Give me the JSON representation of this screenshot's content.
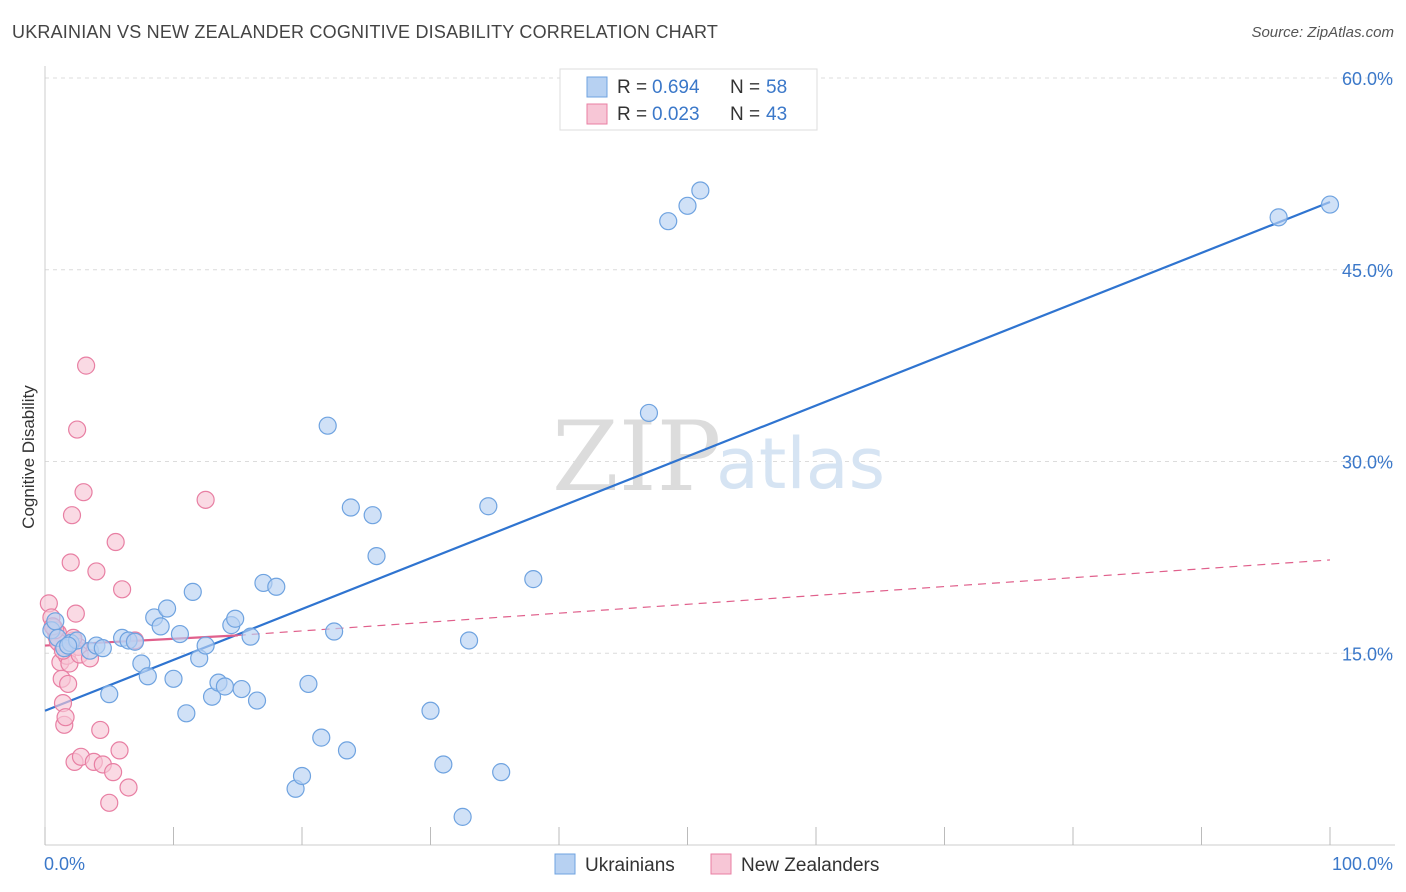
{
  "header": {
    "title": "UKRAINIAN VS NEW ZEALANDER COGNITIVE DISABILITY CORRELATION CHART",
    "source": "Source: ZipAtlas.com"
  },
  "legend": {
    "rows": [
      {
        "r_label": "R =",
        "r_value": "0.694",
        "n_label": "N =",
        "n_value": "58"
      },
      {
        "r_label": "R =",
        "r_value": "0.023",
        "n_label": "N =",
        "n_value": "43"
      }
    ]
  },
  "watermark": {
    "zip": "ZIP",
    "atlas": "atlas"
  },
  "colors": {
    "blue": "#6fa3e0",
    "blue_fill": "#b7d1f2",
    "blue_line": "#2f74d0",
    "pink": "#e87fa3",
    "pink_fill": "#f7c6d6",
    "pink_line": "#e0608c",
    "tick_text": "#3b78c9"
  },
  "chart_data": {
    "type": "scatter",
    "ylabel": "Cognitive Disability",
    "xlim": [
      0,
      100
    ],
    "ylim": [
      0,
      60
    ],
    "x_tick_labels": [
      "0.0%",
      "100.0%"
    ],
    "y_ticks": [
      15,
      30,
      45,
      60
    ],
    "y_tick_labels": [
      "15.0%",
      "30.0%",
      "45.0%",
      "60.0%"
    ],
    "grid": true,
    "legend_position": "bottom-center",
    "series": [
      {
        "name": "Ukrainians",
        "color": "#6fa3e0",
        "trend": {
          "x": [
            0,
            100
          ],
          "y": [
            10.5,
            50.3
          ]
        },
        "points": [
          [
            0.5,
            16.8
          ],
          [
            0.8,
            17.5
          ],
          [
            1.0,
            16.2
          ],
          [
            1.5,
            15.4
          ],
          [
            2.0,
            15.8
          ],
          [
            2.5,
            16.0
          ],
          [
            3.5,
            15.2
          ],
          [
            4.0,
            15.6
          ],
          [
            4.5,
            15.4
          ],
          [
            5.0,
            11.8
          ],
          [
            6.0,
            16.2
          ],
          [
            6.5,
            16.0
          ],
          [
            7.0,
            15.9
          ],
          [
            7.5,
            14.2
          ],
          [
            8.0,
            13.2
          ],
          [
            8.5,
            17.8
          ],
          [
            9.0,
            17.1
          ],
          [
            9.5,
            18.5
          ],
          [
            10.0,
            13.0
          ],
          [
            10.5,
            16.5
          ],
          [
            11.0,
            10.3
          ],
          [
            11.5,
            19.8
          ],
          [
            12.0,
            14.6
          ],
          [
            12.5,
            15.6
          ],
          [
            13.0,
            11.6
          ],
          [
            13.5,
            12.7
          ],
          [
            14.0,
            12.4
          ],
          [
            14.5,
            17.2
          ],
          [
            14.8,
            17.7
          ],
          [
            15.3,
            12.2
          ],
          [
            16.0,
            16.3
          ],
          [
            16.5,
            11.3
          ],
          [
            17.0,
            20.5
          ],
          [
            18.0,
            20.2
          ],
          [
            19.5,
            4.4
          ],
          [
            20.0,
            5.4
          ],
          [
            20.5,
            12.6
          ],
          [
            21.5,
            8.4
          ],
          [
            22.0,
            32.8
          ],
          [
            22.5,
            16.7
          ],
          [
            23.5,
            7.4
          ],
          [
            23.8,
            26.4
          ],
          [
            25.5,
            25.8
          ],
          [
            25.8,
            22.6
          ],
          [
            30.0,
            10.5
          ],
          [
            31.0,
            6.3
          ],
          [
            32.5,
            2.2
          ],
          [
            33.0,
            16.0
          ],
          [
            34.5,
            26.5
          ],
          [
            35.5,
            5.7
          ],
          [
            38.0,
            20.8
          ],
          [
            47.0,
            33.8
          ],
          [
            48.5,
            48.8
          ],
          [
            50.0,
            50.0
          ],
          [
            51.0,
            51.2
          ],
          [
            96.0,
            49.1
          ],
          [
            100.0,
            50.1
          ],
          [
            1.8,
            15.6
          ]
        ]
      },
      {
        "name": "New Zealanders",
        "color": "#e87fa3",
        "trend": {
          "x": [
            0,
            15
          ],
          "y": [
            15.6,
            16.4
          ]
        },
        "trend_dashed": {
          "x": [
            15,
            100
          ],
          "y": [
            16.4,
            22.3
          ]
        },
        "points": [
          [
            0.3,
            18.9
          ],
          [
            0.5,
            17.8
          ],
          [
            0.7,
            17.0
          ],
          [
            0.9,
            16.3
          ],
          [
            1.0,
            16.6
          ],
          [
            1.1,
            15.8
          ],
          [
            1.2,
            14.3
          ],
          [
            1.3,
            13.0
          ],
          [
            1.4,
            11.1
          ],
          [
            1.5,
            9.4
          ],
          [
            1.6,
            10.0
          ],
          [
            1.7,
            14.8
          ],
          [
            1.8,
            12.6
          ],
          [
            1.9,
            14.2
          ],
          [
            2.0,
            22.1
          ],
          [
            2.1,
            25.8
          ],
          [
            2.2,
            16.0
          ],
          [
            2.3,
            6.5
          ],
          [
            2.4,
            18.1
          ],
          [
            2.5,
            32.5
          ],
          [
            2.6,
            15.5
          ],
          [
            2.7,
            14.9
          ],
          [
            2.8,
            6.9
          ],
          [
            3.0,
            27.6
          ],
          [
            3.2,
            37.5
          ],
          [
            3.5,
            14.6
          ],
          [
            3.8,
            6.5
          ],
          [
            4.0,
            21.4
          ],
          [
            4.3,
            9.0
          ],
          [
            4.5,
            6.3
          ],
          [
            5.0,
            3.3
          ],
          [
            5.3,
            5.7
          ],
          [
            5.5,
            23.7
          ],
          [
            5.8,
            7.4
          ],
          [
            6.0,
            20.0
          ],
          [
            6.5,
            4.5
          ],
          [
            7.0,
            16.0
          ],
          [
            1.0,
            15.9
          ],
          [
            1.4,
            15.2
          ],
          [
            0.8,
            16.8
          ],
          [
            0.6,
            17.1
          ],
          [
            12.5,
            27.0
          ],
          [
            2.2,
            16.2
          ]
        ]
      }
    ],
    "bottom_legend": [
      "Ukrainians",
      "New Zealanders"
    ]
  }
}
